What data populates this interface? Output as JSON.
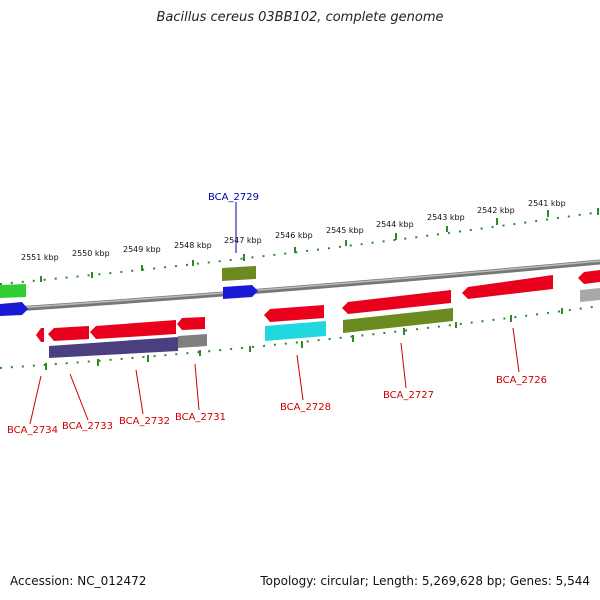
{
  "title": "Bacillus cereus 03BB102, complete genome",
  "footer": {
    "accession": "Accession: NC_012472",
    "info": "Topology: circular; Length: 5,269,628 bp; Genes: 5,544"
  },
  "colors": {
    "backbone": "#8c8c8c",
    "tick": "#2a8a2a",
    "red": "#e8001c",
    "green": "#33cc33",
    "blue": "#1a1ad6",
    "olive": "#6b8a1f",
    "purple": "#4a4080",
    "gray": "#808080",
    "cyan": "#22d8e0",
    "label_red": "#cc0000",
    "label_blue": "#0000aa"
  },
  "kbp_labels": [
    "2551 kbp",
    "2550 kbp",
    "2549 kbp",
    "2548 kbp",
    "2547 kbp",
    "2546 kbp",
    "2545 kbp",
    "2544 kbp",
    "2543 kbp",
    "2542 kbp",
    "2541 kbp"
  ],
  "gene_labels": [
    "BCA_2729",
    "BCA_2734",
    "BCA_2733",
    "BCA_2732",
    "BCA_2731",
    "BCA_2728",
    "BCA_2727",
    "BCA_2726"
  ]
}
